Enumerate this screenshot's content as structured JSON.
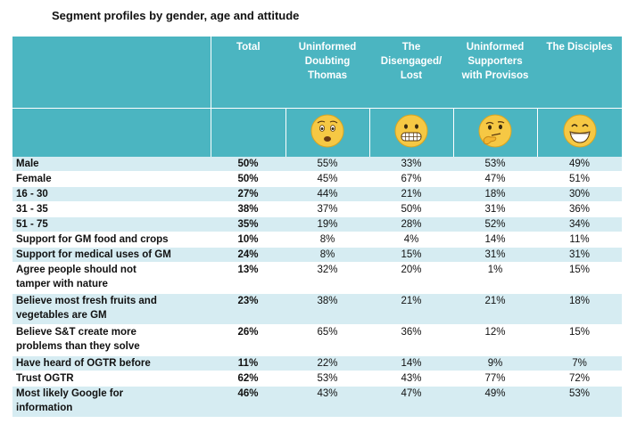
{
  "title": "Segment profiles by gender, age and attitude",
  "columns": {
    "total": "Total",
    "seg1": [
      "Uninformed",
      "Doubting",
      "Thomas"
    ],
    "seg2": [
      "The",
      "Disengaged/",
      "Lost"
    ],
    "seg3": [
      "Uninformed",
      "Supporters",
      "with Provisos"
    ],
    "seg4": [
      "The Disciples"
    ]
  },
  "icons": {
    "seg1": "worried-face-icon",
    "seg2": "grimacing-face-icon",
    "seg3": "thinking-face-icon",
    "seg4": "grinning-face-icon",
    "face_color": "#f6c844"
  },
  "rows": [
    {
      "label": [
        "Male"
      ],
      "total": "50%",
      "v": [
        "55%",
        "33%",
        "53%",
        "49%"
      ]
    },
    {
      "label": [
        "Female"
      ],
      "total": "50%",
      "v": [
        "45%",
        "67%",
        "47%",
        "51%"
      ]
    },
    {
      "label": [
        "16 - 30"
      ],
      "total": "27%",
      "v": [
        "44%",
        "21%",
        "18%",
        "30%"
      ]
    },
    {
      "label": [
        "31 - 35"
      ],
      "total": "38%",
      "v": [
        "37%",
        "50%",
        "31%",
        "36%"
      ]
    },
    {
      "label": [
        "51 - 75"
      ],
      "total": "35%",
      "v": [
        "19%",
        "28%",
        "52%",
        "34%"
      ]
    },
    {
      "label": [
        "Support for GM food and crops"
      ],
      "total": "10%",
      "v": [
        "8%",
        "4%",
        "14%",
        "11%"
      ]
    },
    {
      "label": [
        "Support for medical uses of GM"
      ],
      "total": "24%",
      "v": [
        "8%",
        "15%",
        "31%",
        "31%"
      ]
    },
    {
      "label": [
        "Agree people should not",
        "tamper with nature"
      ],
      "total": "13%",
      "v": [
        "32%",
        "20%",
        "1%",
        "15%"
      ]
    },
    {
      "label": [
        "Believe most fresh fruits and",
        "vegetables are GM"
      ],
      "total": "23%",
      "v": [
        "38%",
        "21%",
        "21%",
        "18%"
      ]
    },
    {
      "label": [
        "Believe S&T create more",
        "problems than they solve"
      ],
      "total": "26%",
      "v": [
        "65%",
        "36%",
        "12%",
        "15%"
      ]
    },
    {
      "label": [
        "Have heard of OGTR before"
      ],
      "total": "11%",
      "v": [
        "22%",
        "14%",
        "9%",
        "7%"
      ]
    },
    {
      "label": [
        "Trust OGTR"
      ],
      "total": "62%",
      "v": [
        "53%",
        "43%",
        "77%",
        "72%"
      ]
    },
    {
      "label": [
        "Most likely Google for",
        "information"
      ],
      "total": "46%",
      "v": [
        "43%",
        "47%",
        "49%",
        "53%"
      ]
    }
  ]
}
